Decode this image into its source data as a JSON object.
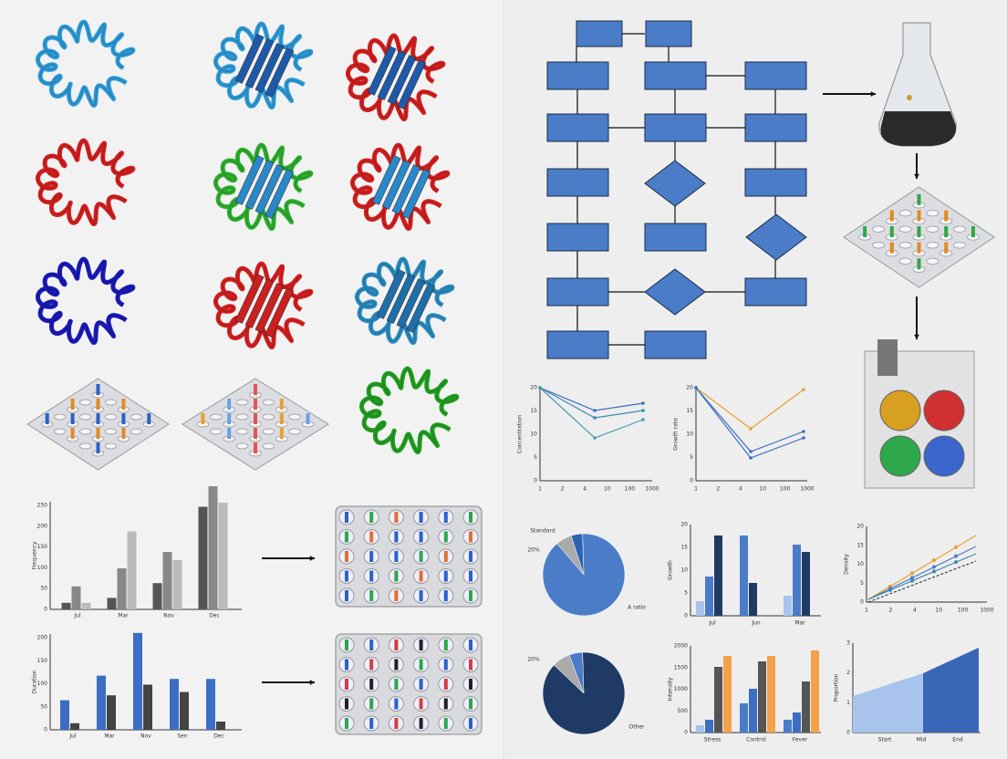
{
  "left_bar_charts": [
    {
      "y_label": "Frequency",
      "yticks": [
        "0",
        "50",
        "100",
        "150",
        "200",
        "250"
      ],
      "categories": [
        "Jul",
        "Mar",
        "Nov",
        "Dec"
      ]
    },
    {
      "y_label": "Duration",
      "yticks": [
        "0",
        "50",
        "100",
        "150",
        "200"
      ],
      "categories": [
        "Jul",
        "Mar",
        "Nov",
        "Sen",
        "Dec"
      ]
    }
  ],
  "line_charts": [
    {
      "y_label": "Concentration",
      "yticks": [
        "0",
        "5",
        "10",
        "15",
        "20"
      ],
      "xticks": [
        "1",
        "2",
        "4",
        "10",
        "100",
        "1000"
      ]
    },
    {
      "y_label": "Growth rate",
      "yticks": [
        "0",
        "5",
        "10",
        "15",
        "20"
      ],
      "xticks": [
        "1",
        "2",
        "4",
        "10",
        "100",
        "1000"
      ]
    }
  ],
  "pie_charts": [
    {
      "labels": [
        "Standard",
        "20%",
        "A ratio"
      ]
    },
    {
      "labels": [
        "20%",
        "Other"
      ]
    }
  ],
  "small_bar_charts": [
    {
      "y_label": "Growth",
      "yticks": [
        "0",
        "5",
        "10",
        "15",
        "20"
      ],
      "categories": [
        "Jul",
        "Jun",
        "Mar"
      ]
    },
    {
      "y_label": "Intensity",
      "yticks": [
        "0",
        "500",
        "1000",
        "1500",
        "2000"
      ],
      "categories": [
        "Stress",
        "Control",
        "Fever"
      ]
    }
  ],
  "scatter_chart": {
    "y_label": "Density",
    "yticks": [
      "0",
      "5",
      "10",
      "15",
      "20"
    ],
    "xticks": [
      "1",
      "2",
      "4",
      "10",
      "100",
      "1000"
    ]
  },
  "area_chart": {
    "y_label": "Proportion",
    "yticks": [
      "0",
      "1",
      "2",
      "3"
    ],
    "categories": [
      "Start",
      "Mid",
      "End"
    ]
  }
}
